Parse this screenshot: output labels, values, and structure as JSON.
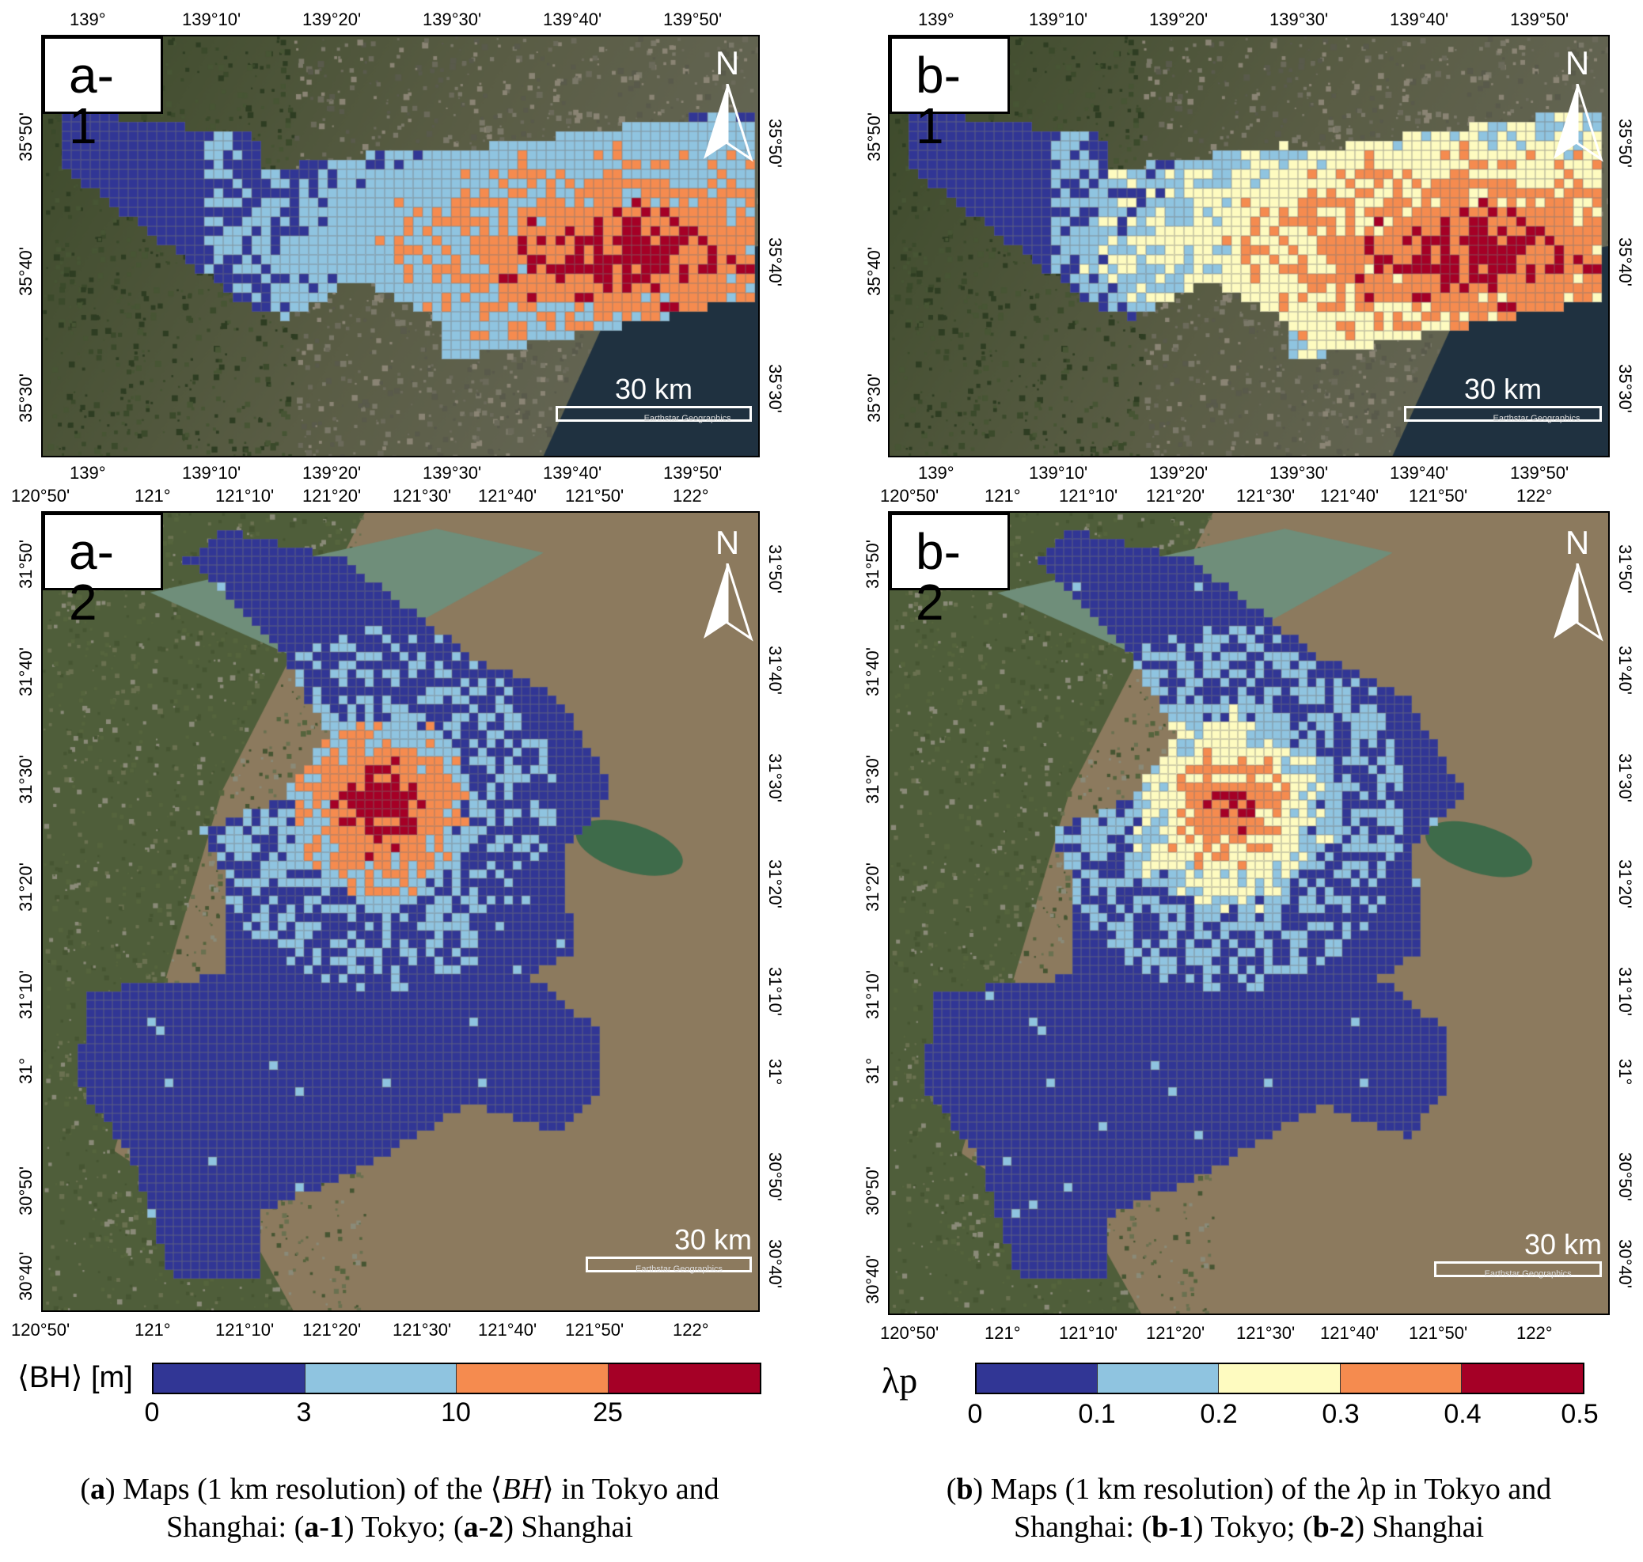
{
  "panels": {
    "a1": {
      "label": "a-1",
      "north": "N",
      "scale": "30 km",
      "credit": "Earthstar Geographics",
      "top_ticks": [
        "139°",
        "139°10'",
        "139°20'",
        "139°30'",
        "139°40'",
        "139°50'"
      ],
      "bottom_ticks": [
        "139°",
        "139°10'",
        "139°20'",
        "139°30'",
        "139°40'",
        "139°50'"
      ],
      "left_ticks": [
        "35°50'",
        "35°40'",
        "35°30'"
      ],
      "right_ticks": [
        "35°50'",
        "35°40'",
        "35°30'"
      ]
    },
    "b1": {
      "label": "b-1",
      "north": "N",
      "scale": "30 km",
      "credit": "Earthstar Geographics",
      "top_ticks": [
        "139°",
        "139°10'",
        "139°20'",
        "139°30'",
        "139°40'",
        "139°50'"
      ],
      "bottom_ticks": [
        "139°",
        "139°10'",
        "139°20'",
        "139°30'",
        "139°40'",
        "139°50'"
      ],
      "left_ticks": [
        "35°50'",
        "35°40'",
        "35°30'"
      ],
      "right_ticks": [
        "35°50'",
        "35°40'",
        "35°30'"
      ]
    },
    "a2": {
      "label": "a-2",
      "north": "N",
      "scale": "30 km",
      "credit": "Earthstar Geographics",
      "top_ticks": [
        "120°50'",
        "121°",
        "121°10'",
        "121°20'",
        "121°30'",
        "121°40'",
        "121°50'",
        "122°"
      ],
      "bottom_ticks": [
        "120°50'",
        "121°",
        "121°10'",
        "121°20'",
        "121°30'",
        "121°40'",
        "121°50'",
        "122°"
      ],
      "left_ticks": [
        "31°50'",
        "31°40'",
        "31°30'",
        "31°20'",
        "31°10'",
        "31°",
        "30°50'",
        "30°40'"
      ],
      "right_ticks": [
        "31°50'",
        "31°40'",
        "31°30'",
        "31°20'",
        "31°10'",
        "31°",
        "30°50'",
        "30°40'"
      ]
    },
    "b2": {
      "label": "b-2",
      "north": "N",
      "scale": "30 km",
      "credit": "Earthstar Geographics",
      "top_ticks": [
        "120°50'",
        "121°",
        "121°10'",
        "121°20'",
        "121°30'",
        "121°40'",
        "121°50'",
        "122°"
      ],
      "bottom_ticks": [
        "120°50'",
        "121°",
        "121°10'",
        "121°20'",
        "121°30'",
        "121°40'",
        "121°50'",
        "122°"
      ],
      "left_ticks": [
        "31°50'",
        "31°40'",
        "31°30'",
        "31°20'",
        "31°10'",
        "31°",
        "30°50'",
        "30°40'"
      ],
      "right_ticks": [
        "31°50'",
        "31°40'",
        "31°30'",
        "31°20'",
        "31°10'",
        "31°",
        "30°50'",
        "30°40'"
      ]
    }
  },
  "legend_bh": {
    "title": "⟨BH⟩ [m]",
    "labels": [
      "0",
      "3",
      "10",
      "25"
    ],
    "colors": [
      "#313695",
      "#8fc4e0",
      "#f58b4f",
      "#a50026"
    ]
  },
  "legend_lp": {
    "title": "λp",
    "labels": [
      "0",
      "0.1",
      "0.2",
      "0.3",
      "0.4",
      "0.5"
    ],
    "colors": [
      "#313695",
      "#8fc4e0",
      "#fefbc0",
      "#f58b4f",
      "#a50026"
    ]
  },
  "captions": {
    "a_line1_pre": "(",
    "a_bold": "a",
    "a_line1_mid": ") Maps (1 km resolution) of the ⟨",
    "a_ital": "BH",
    "a_line1_post": "⟩  in Tokyo and",
    "a_line2_pre": "Shanghai: (",
    "a_sub1": "a-1",
    "a_line2_mid": ") Tokyo; (",
    "a_sub2": "a-2",
    "a_line2_post": ") Shanghai",
    "b_line1_pre": "(",
    "b_bold": "b",
    "b_line1_mid": ") Maps (1 km resolution) of the ",
    "b_ital": "λ",
    "b_line1_post": "p in Tokyo and",
    "b_line2_pre": "Shanghai: (",
    "b_sub1": "b-1",
    "b_line2_mid": ") Tokyo; (",
    "b_sub2": "b-2",
    "b_line2_post": ") Shanghai"
  }
}
